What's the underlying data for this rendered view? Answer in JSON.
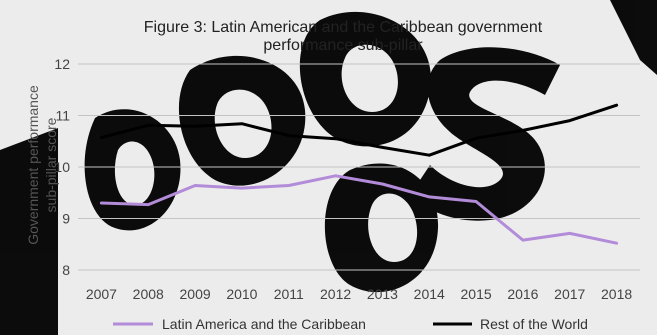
{
  "chart_data": {
    "type": "line",
    "title": "Figure 3: Latin American and the Caribbean government performance sub-pillar",
    "title_lines": [
      "Figure 3: Latin American and the Caribbean government",
      "performance sub-pillar"
    ],
    "xlabel": "",
    "ylabel": "Government performance sub-pillar score",
    "ylabel_lines": [
      "Government performance",
      "sub-pillar score"
    ],
    "categories": [
      "2007",
      "2008",
      "2009",
      "2010",
      "2011",
      "2012",
      "2013",
      "2014",
      "2015",
      "2016",
      "2017",
      "2018"
    ],
    "ylim": [
      8,
      12
    ],
    "yticks": [
      8,
      9,
      10,
      11,
      12
    ],
    "grid": true,
    "legend_position": "bottom",
    "series": [
      {
        "name": "Latin America and the Caribbean",
        "color": "#b38cd9",
        "values": [
          9.3,
          9.27,
          9.64,
          9.59,
          9.64,
          9.83,
          9.67,
          9.42,
          9.33,
          8.58,
          8.71,
          8.52
        ]
      },
      {
        "name": "Rest of the World",
        "color": "#000000",
        "values": [
          10.57,
          10.81,
          10.79,
          10.84,
          10.61,
          10.55,
          10.38,
          10.23,
          10.56,
          10.71,
          10.9,
          11.2
        ]
      }
    ]
  }
}
